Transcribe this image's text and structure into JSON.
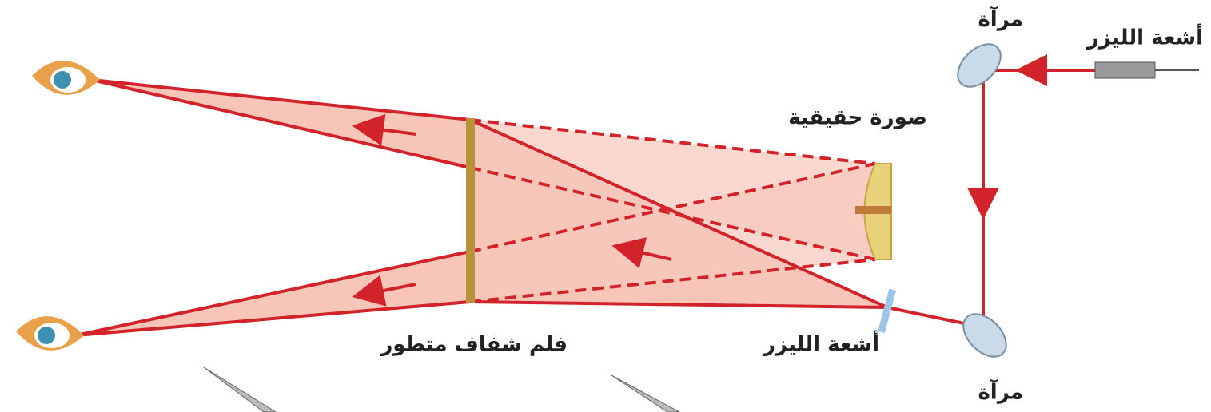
{
  "labels": {
    "laser_top": "أشعة الليزر",
    "mirror_top": "مرآة",
    "real_image": "صورة حقيقية",
    "film": "فلم شفاف متطور",
    "laser_bottom": "أشعة الليزر",
    "mirror_bottom": "مرآة"
  }
}
